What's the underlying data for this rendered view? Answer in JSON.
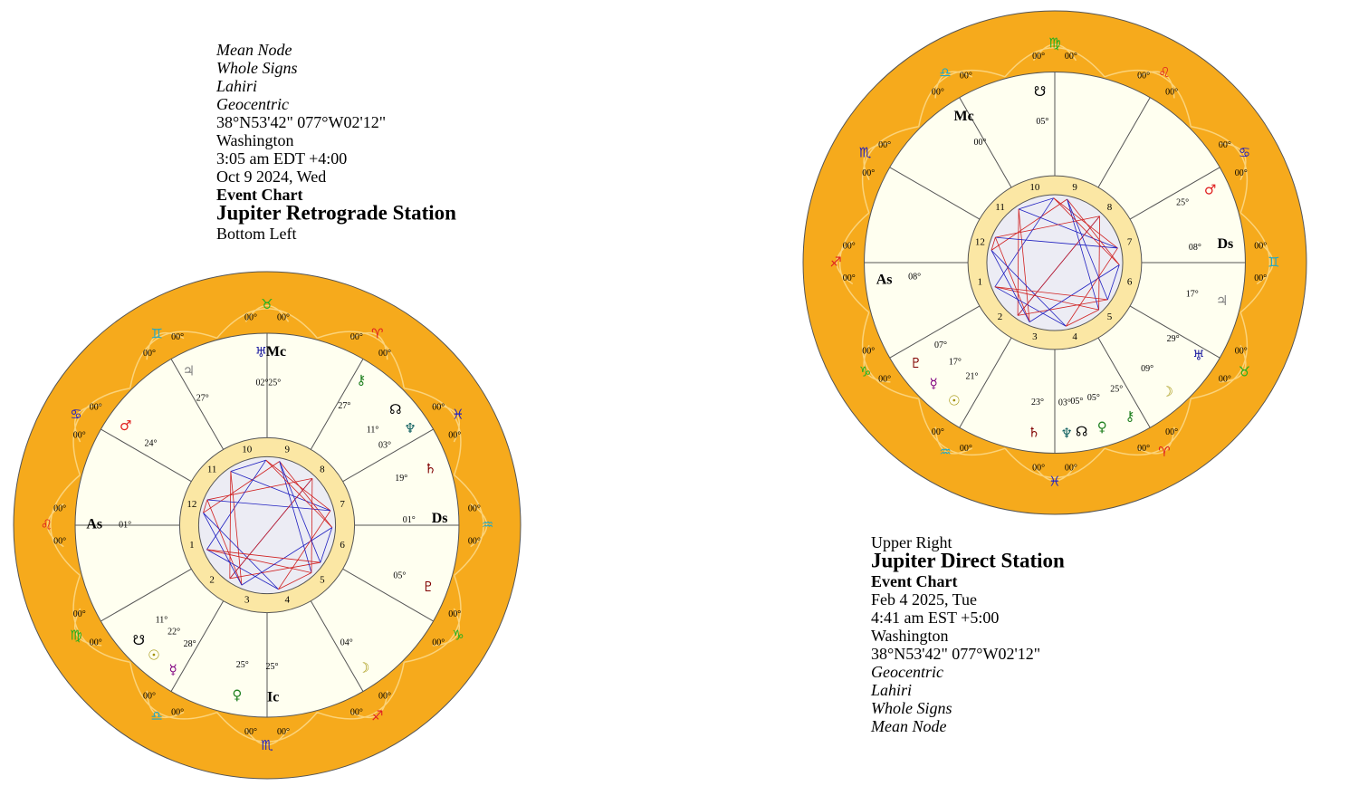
{
  "charts": [
    {
      "header_lines": [
        "Mean Node",
        "Whole Signs",
        "Lahiri",
        "Geocentric",
        "38°N53'42\" 077°W02'12\"",
        "Washington",
        "3:05 am  EDT +4:00",
        "Oct 9 2024, Wed",
        "Event Chart",
        "Jupiter Retrograde Station",
        "Bottom Left"
      ],
      "cusp_label": "00°",
      "houses": [
        "1",
        "2",
        "3",
        "4",
        "5",
        "6",
        "7",
        "8",
        "9",
        "10",
        "11",
        "12"
      ],
      "signs": [
        {
          "glyph": "♌",
          "color": "#e02020"
        },
        {
          "glyph": "♍",
          "color": "#20b020"
        },
        {
          "glyph": "♎",
          "color": "#20a8c8"
        },
        {
          "glyph": "♏",
          "color": "#2020c0"
        },
        {
          "glyph": "♐",
          "color": "#e02020"
        },
        {
          "glyph": "♑",
          "color": "#20b020"
        },
        {
          "glyph": "♒",
          "color": "#20a8c8"
        },
        {
          "glyph": "♓",
          "color": "#2020c0"
        },
        {
          "glyph": "♈",
          "color": "#e02020"
        },
        {
          "glyph": "♉",
          "color": "#20b020"
        },
        {
          "glyph": "♊",
          "color": "#20a8c8"
        },
        {
          "glyph": "♋",
          "color": "#2020c0"
        }
      ],
      "points": [
        {
          "glyph": "As",
          "degree": "01°",
          "color": "#000000"
        },
        {
          "glyph": "♃",
          "degree": "27°",
          "color": "#808080"
        },
        {
          "glyph": "♅",
          "degree": "02°",
          "color": "#1a1aa0"
        },
        {
          "glyph": "Mc",
          "degree": "25°",
          "color": "#000000"
        },
        {
          "glyph": "⚷",
          "degree": "27°",
          "color": "#208020"
        },
        {
          "glyph": "☊",
          "degree": "11°",
          "color": "#000000"
        },
        {
          "glyph": "♆",
          "degree": "03°",
          "color": "#106060"
        },
        {
          "glyph": "♄",
          "degree": "19°",
          "color": "#800000"
        },
        {
          "glyph": "Ds",
          "degree": "01°",
          "color": "#000000"
        },
        {
          "glyph": "♇",
          "degree": "05°",
          "color": "#800000"
        },
        {
          "glyph": "☽",
          "degree": "04°",
          "color": "#a09000"
        },
        {
          "glyph": "Ic",
          "degree": "25°",
          "color": "#000000"
        },
        {
          "glyph": "♀",
          "degree": "25°",
          "color": "#208020"
        },
        {
          "glyph": "☿",
          "degree": "28°",
          "color": "#800080"
        },
        {
          "glyph": "☉",
          "degree": "22°",
          "color": "#a09000"
        },
        {
          "glyph": "☋",
          "degree": "11°",
          "color": "#000000"
        },
        {
          "glyph": "♂",
          "degree": "24°",
          "color": "#e02020"
        }
      ]
    },
    {
      "header_lines": [
        "Upper Right",
        "Jupiter Direct Station",
        "Event Chart",
        "Feb 4 2025, Tue",
        "4:41 am  EST +5:00",
        "Washington",
        "38°N53'42\" 077°W02'12\"",
        "Geocentric",
        "Lahiri",
        "Whole Signs",
        "Mean Node"
      ],
      "cusp_label": "00°",
      "houses": [
        "1",
        "2",
        "3",
        "4",
        "5",
        "6",
        "7",
        "8",
        "9",
        "10",
        "11",
        "12"
      ],
      "signs": [
        {
          "glyph": "♐",
          "color": "#e02020"
        },
        {
          "glyph": "♑",
          "color": "#20b020"
        },
        {
          "glyph": "♒",
          "color": "#20a8c8"
        },
        {
          "glyph": "♓",
          "color": "#2020c0"
        },
        {
          "glyph": "♈",
          "color": "#e02020"
        },
        {
          "glyph": "♉",
          "color": "#20b020"
        },
        {
          "glyph": "♊",
          "color": "#20a8c8"
        },
        {
          "glyph": "♋",
          "color": "#2020c0"
        },
        {
          "glyph": "♌",
          "color": "#e02020"
        },
        {
          "glyph": "♍",
          "color": "#20b020"
        },
        {
          "glyph": "♎",
          "color": "#20a8c8"
        },
        {
          "glyph": "♏",
          "color": "#2020c0"
        }
      ],
      "points": [
        {
          "glyph": "As",
          "degree": "08°",
          "color": "#000000"
        },
        {
          "glyph": "♇",
          "degree": "07°",
          "color": "#800000"
        },
        {
          "glyph": "☿",
          "degree": "17°",
          "color": "#800080"
        },
        {
          "glyph": "☉",
          "degree": "21°",
          "color": "#a09000"
        },
        {
          "glyph": "♄",
          "degree": "23°",
          "color": "#800000"
        },
        {
          "glyph": "♆",
          "degree": "03°",
          "color": "#106060"
        },
        {
          "glyph": "☊",
          "degree": "05°",
          "color": "#000000"
        },
        {
          "glyph": "♀",
          "degree": "05°",
          "color": "#208020"
        },
        {
          "glyph": "⚷",
          "degree": "25°",
          "color": "#208020"
        },
        {
          "glyph": "☽",
          "degree": "09°",
          "color": "#a09000"
        },
        {
          "glyph": "♅",
          "degree": "29°",
          "color": "#1a1aa0"
        },
        {
          "glyph": "♃",
          "degree": "17°",
          "color": "#808080"
        },
        {
          "glyph": "Ds",
          "degree": "08°",
          "color": "#000000"
        },
        {
          "glyph": "♂",
          "degree": "25°",
          "color": "#e02020"
        },
        {
          "glyph": "☋",
          "degree": "05°",
          "color": "#000000"
        },
        {
          "glyph": "Mc",
          "degree": "00°",
          "color": "#000000"
        }
      ]
    }
  ]
}
